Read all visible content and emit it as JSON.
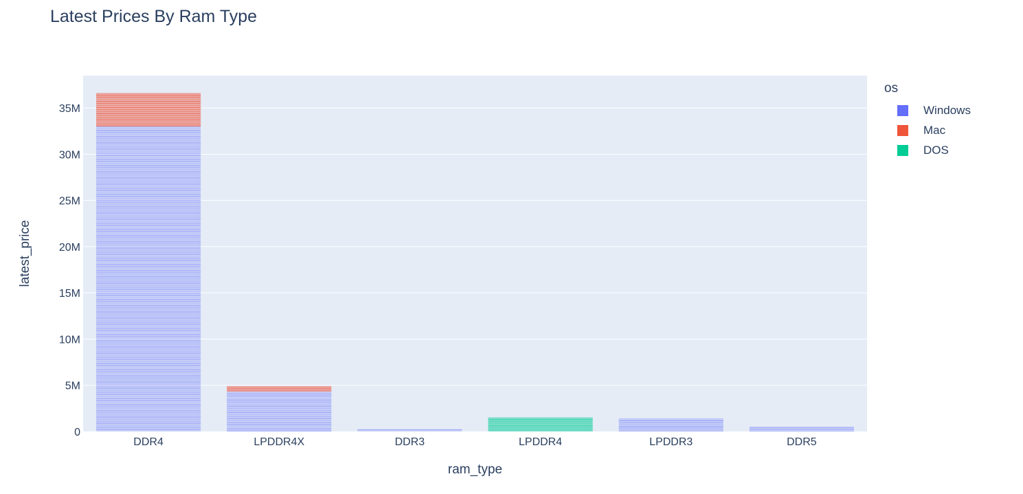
{
  "chart_data": {
    "type": "bar",
    "barmode": "stack",
    "title": "Latest Prices By Ram Type",
    "xlabel": "ram_type",
    "ylabel": "latest_price",
    "categories": [
      "DDR4",
      "LPDDR4X",
      "DDR3",
      "LPDDR4",
      "LPDDR3",
      "DDR5"
    ],
    "ylim": [
      0,
      38500000
    ],
    "yticks": [
      0,
      5000000,
      10000000,
      15000000,
      20000000,
      25000000,
      30000000,
      35000000
    ],
    "ytick_labels": [
      "0",
      "5M",
      "10M",
      "15M",
      "20M",
      "25M",
      "30M",
      "35M"
    ],
    "series": [
      {
        "name": "Windows",
        "color": "#636efa",
        "values": [
          33000000,
          4300000,
          200000,
          0,
          1400000,
          450000
        ]
      },
      {
        "name": "Mac",
        "color": "#ef553b",
        "values": [
          3600000,
          600000,
          0,
          0,
          0,
          0
        ]
      },
      {
        "name": "DOS",
        "color": "#00cc96",
        "values": [
          0,
          0,
          0,
          1500000,
          0,
          0
        ]
      }
    ],
    "legend": {
      "title": "os",
      "position": "top-right"
    },
    "grid": true,
    "colors": {
      "plot_bg": "#e5ecf6",
      "grid": "#ffffff",
      "text": "#2a3f5f"
    }
  }
}
